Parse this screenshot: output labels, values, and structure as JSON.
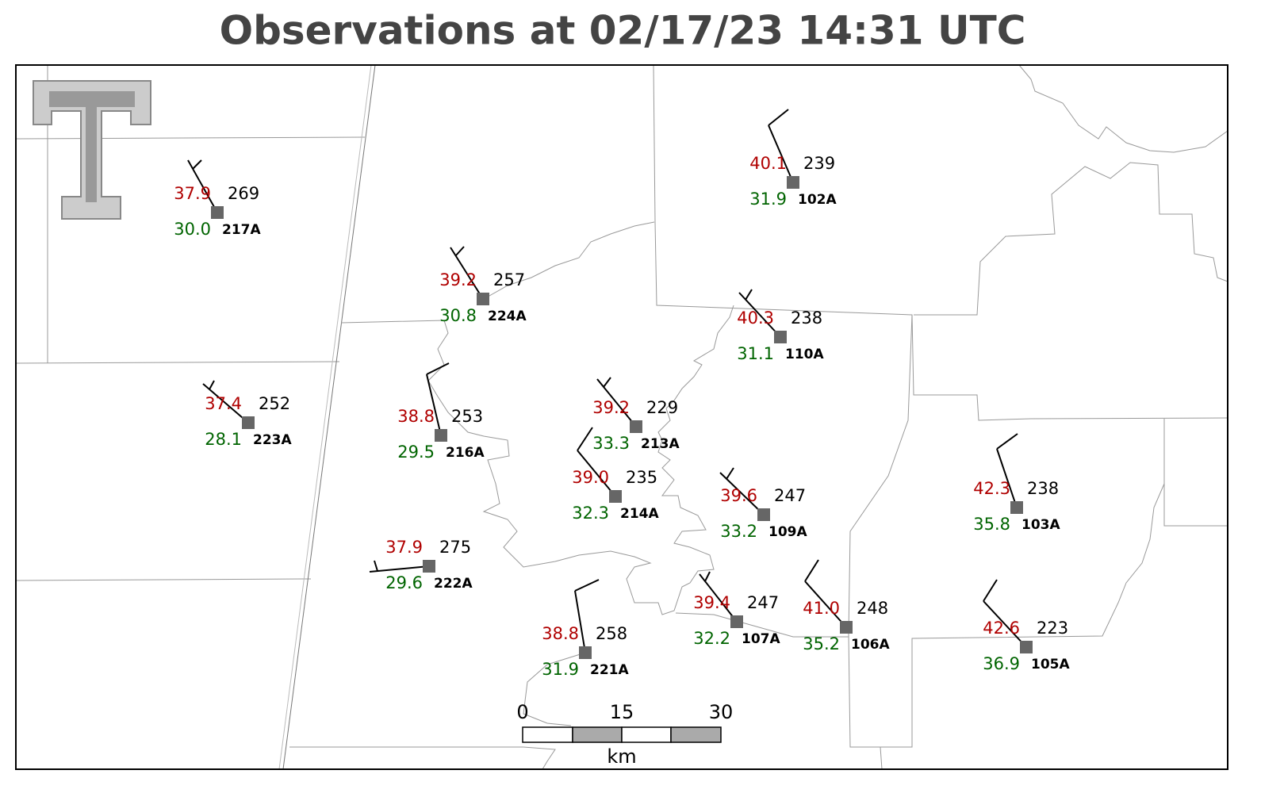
{
  "header": {
    "title": "Observations at 02/17/23 14:31 UTC"
  },
  "stations": [
    {
      "id": "217A",
      "temperature": "37.9",
      "dewpoint": "30.0",
      "value": "269"
    },
    {
      "id": "224A",
      "temperature": "39.2",
      "dewpoint": "30.8",
      "value": "257"
    },
    {
      "id": "102A",
      "temperature": "40.1",
      "dewpoint": "31.9",
      "value": "239"
    },
    {
      "id": "110A",
      "temperature": "40.3",
      "dewpoint": "31.1",
      "value": "238"
    },
    {
      "id": "223A",
      "temperature": "37.4",
      "dewpoint": "28.1",
      "value": "252"
    },
    {
      "id": "216A",
      "temperature": "38.8",
      "dewpoint": "29.5",
      "value": "253"
    },
    {
      "id": "213A",
      "temperature": "39.2",
      "dewpoint": "33.3",
      "value": "229"
    },
    {
      "id": "214A",
      "temperature": "39.0",
      "dewpoint": "32.3",
      "value": "235"
    },
    {
      "id": "109A",
      "temperature": "39.6",
      "dewpoint": "33.2",
      "value": "247"
    },
    {
      "id": "103A",
      "temperature": "42.3",
      "dewpoint": "35.8",
      "value": "238"
    },
    {
      "id": "222A",
      "temperature": "37.9",
      "dewpoint": "29.6",
      "value": "275"
    },
    {
      "id": "221A",
      "temperature": "38.8",
      "dewpoint": "31.9",
      "value": "258"
    },
    {
      "id": "107A",
      "temperature": "39.4",
      "dewpoint": "32.2",
      "value": "247"
    },
    {
      "id": "106A",
      "temperature": "41.0",
      "dewpoint": "35.2",
      "value": "248"
    },
    {
      "id": "105A",
      "temperature": "42.6",
      "dewpoint": "36.9",
      "value": "223"
    }
  ],
  "scale_bar": {
    "ticks": [
      "0",
      "15",
      "30"
    ],
    "unit": "km"
  }
}
